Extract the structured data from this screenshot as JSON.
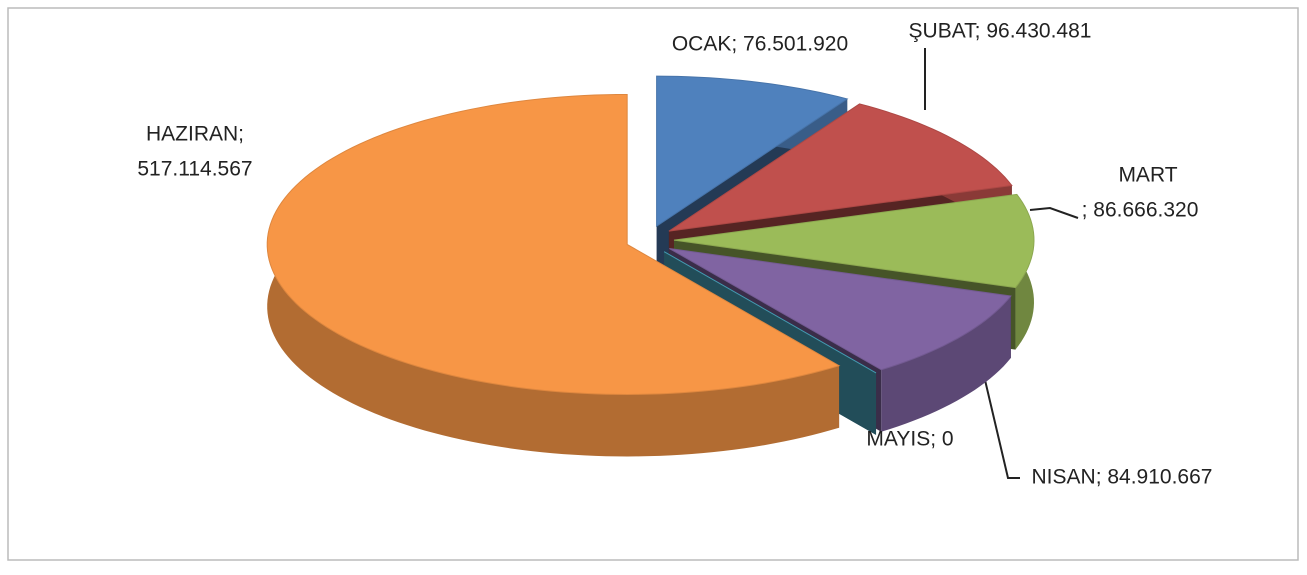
{
  "chart_data": {
    "type": "pie",
    "values": [
      76501920,
      96430481,
      86666320,
      84910667,
      0,
      517114567
    ],
    "value_labels": [
      [
        "OCAK; 76.501.920"
      ],
      [
        "ŞUBAT; 96.430.481"
      ],
      [
        "MART",
        "; 86.666.320"
      ],
      [
        "NISAN; 84.910.667"
      ],
      [
        "MAYIS; 0"
      ],
      [
        "HAZIRAN;",
        "517.114.567"
      ]
    ],
    "colors": [
      "#4f81bd",
      "#c0504d",
      "#9bbb59",
      "#8064a2",
      "#4bacc6",
      "#f79646"
    ]
  }
}
